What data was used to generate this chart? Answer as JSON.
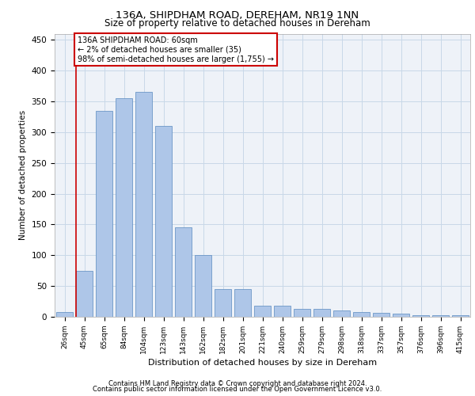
{
  "title": "136A, SHIPDHAM ROAD, DEREHAM, NR19 1NN",
  "subtitle": "Size of property relative to detached houses in Dereham",
  "xlabel": "Distribution of detached houses by size in Dereham",
  "ylabel": "Number of detached properties",
  "categories": [
    "26sqm",
    "45sqm",
    "65sqm",
    "84sqm",
    "104sqm",
    "123sqm",
    "143sqm",
    "162sqm",
    "182sqm",
    "201sqm",
    "221sqm",
    "240sqm",
    "259sqm",
    "279sqm",
    "298sqm",
    "318sqm",
    "337sqm",
    "357sqm",
    "376sqm",
    "396sqm",
    "415sqm"
  ],
  "values": [
    8,
    75,
    335,
    355,
    365,
    310,
    145,
    100,
    45,
    45,
    18,
    18,
    13,
    13,
    10,
    8,
    6,
    5,
    3,
    2,
    2
  ],
  "bar_color": "#aec6e8",
  "bar_edge_color": "#5a8abf",
  "annotation_text": "136A SHIPDHAM ROAD: 60sqm\n← 2% of detached houses are smaller (35)\n98% of semi-detached houses are larger (1,755) →",
  "annotation_box_color": "#ffffff",
  "annotation_box_edge": "#cc0000",
  "vline_color": "#cc0000",
  "grid_color": "#c8d8e8",
  "background_color": "#eef2f8",
  "footer1": "Contains HM Land Registry data © Crown copyright and database right 2024.",
  "footer2": "Contains public sector information licensed under the Open Government Licence v3.0.",
  "ylim": [
    0,
    460
  ],
  "yticks": [
    0,
    50,
    100,
    150,
    200,
    250,
    300,
    350,
    400,
    450
  ]
}
